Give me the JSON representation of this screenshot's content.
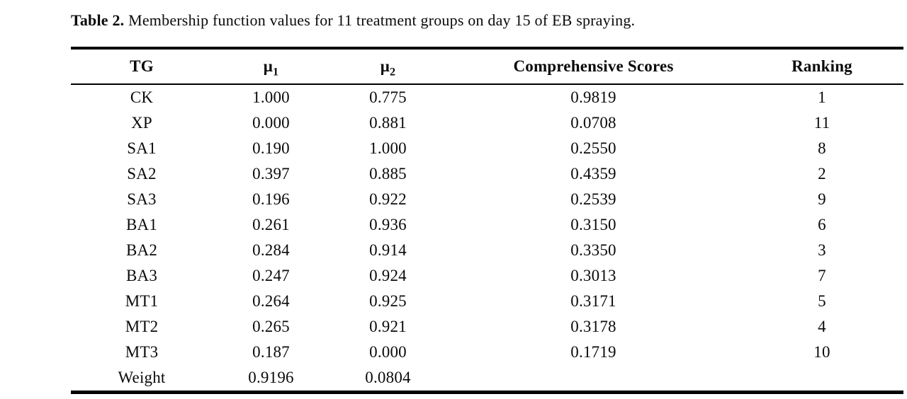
{
  "page": {
    "background_color": "#ffffff",
    "text_color": "#0a0a0a",
    "rule_color": "#000000"
  },
  "caption": {
    "label": "Table 2.",
    "text": " Membership function values for 11 treatment groups on day 15 of EB spraying."
  },
  "table": {
    "headers": [
      {
        "text": "TG"
      },
      {
        "symbol": "μ",
        "subscript": "1"
      },
      {
        "symbol": "μ",
        "subscript": "2"
      },
      {
        "text": "Comprehensive Scores"
      },
      {
        "text": "Ranking"
      }
    ],
    "rows": [
      {
        "tg": "CK",
        "mu1": "1.000",
        "mu2": "0.775",
        "score": "0.9819",
        "ranking": "1"
      },
      {
        "tg": "XP",
        "mu1": "0.000",
        "mu2": "0.881",
        "score": "0.0708",
        "ranking": "11"
      },
      {
        "tg": "SA1",
        "mu1": "0.190",
        "mu2": "1.000",
        "score": "0.2550",
        "ranking": "8"
      },
      {
        "tg": "SA2",
        "mu1": "0.397",
        "mu2": "0.885",
        "score": "0.4359",
        "ranking": "2"
      },
      {
        "tg": "SA3",
        "mu1": "0.196",
        "mu2": "0.922",
        "score": "0.2539",
        "ranking": "9"
      },
      {
        "tg": "BA1",
        "mu1": "0.261",
        "mu2": "0.936",
        "score": "0.3150",
        "ranking": "6"
      },
      {
        "tg": "BA2",
        "mu1": "0.284",
        "mu2": "0.914",
        "score": "0.3350",
        "ranking": "3"
      },
      {
        "tg": "BA3",
        "mu1": "0.247",
        "mu2": "0.924",
        "score": "0.3013",
        "ranking": "7"
      },
      {
        "tg": "MT1",
        "mu1": "0.264",
        "mu2": "0.925",
        "score": "0.3171",
        "ranking": "5"
      },
      {
        "tg": "MT2",
        "mu1": "0.265",
        "mu2": "0.921",
        "score": "0.3178",
        "ranking": "4"
      },
      {
        "tg": "MT3",
        "mu1": "0.187",
        "mu2": "0.000",
        "score": "0.1719",
        "ranking": "10"
      },
      {
        "tg": "Weight",
        "mu1": "0.9196",
        "mu2": "0.0804",
        "score": "",
        "ranking": ""
      }
    ]
  }
}
